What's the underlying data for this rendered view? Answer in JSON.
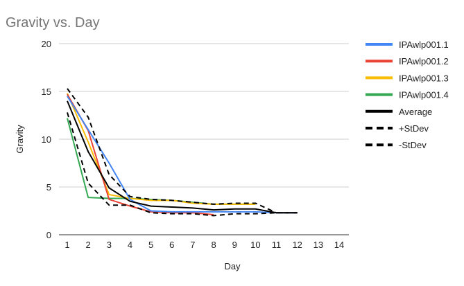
{
  "chart_data": {
    "type": "line",
    "title": "Gravity vs. Day",
    "xlabel": "Day",
    "ylabel": "Gravity",
    "xlim": [
      1,
      14
    ],
    "ylim": [
      0,
      20
    ],
    "x_ticks": [
      "1",
      "2",
      "3",
      "4",
      "5",
      "6",
      "7",
      "8",
      "9",
      "10",
      "11",
      "12",
      "13",
      "14"
    ],
    "y_ticks": [
      "0",
      "5",
      "10",
      "15",
      "20"
    ],
    "grid": true,
    "legend_position": "right",
    "series": [
      {
        "name": "IPAwlp001.1",
        "color": "#4285f4",
        "dash": false,
        "x": [
          1,
          2,
          3,
          4,
          5,
          6,
          7,
          8,
          9,
          10,
          11,
          12
        ],
        "values": [
          14.5,
          11.0,
          7.5,
          3.7,
          2.5,
          2.4,
          2.4,
          2.4,
          2.4,
          2.4,
          2.3,
          2.3
        ]
      },
      {
        "name": "IPAwlp001.2",
        "color": "#ea4335",
        "dash": false,
        "x": [
          1,
          2,
          3,
          4,
          5,
          6,
          7,
          8
        ],
        "values": [
          14.7,
          10.9,
          3.7,
          3.0,
          2.4,
          2.3,
          2.3,
          2.1
        ]
      },
      {
        "name": "IPAwlp001.3",
        "color": "#fbbc04",
        "dash": false,
        "x": [
          1,
          2,
          3,
          4,
          5,
          6,
          7,
          8,
          9,
          10
        ],
        "values": [
          14.8,
          9.7,
          4.2,
          3.8,
          3.6,
          3.6,
          3.3,
          3.2,
          3.2,
          3.2
        ]
      },
      {
        "name": "IPAwlp001.4",
        "color": "#34a853",
        "dash": false,
        "x": [
          1,
          2,
          3,
          4,
          5,
          6,
          7,
          8,
          9,
          10
        ],
        "values": [
          12.2,
          3.9,
          3.8,
          3.8,
          3.7,
          3.6,
          3.4,
          3.2,
          3.2,
          3.2
        ]
      },
      {
        "name": "Average",
        "color": "#000000",
        "dash": false,
        "x": [
          1,
          2,
          3,
          4,
          5,
          6,
          7,
          8,
          9,
          10,
          11,
          12
        ],
        "values": [
          14.0,
          8.7,
          4.9,
          3.5,
          3.0,
          2.9,
          2.8,
          2.6,
          2.7,
          2.7,
          2.3,
          2.3
        ]
      },
      {
        "name": "+StDev",
        "color": "#000000",
        "dash": true,
        "x": [
          1,
          2,
          3,
          4,
          5,
          6,
          7,
          8,
          9,
          10,
          11,
          12
        ],
        "values": [
          15.3,
          12.3,
          6.3,
          4.0,
          3.7,
          3.6,
          3.4,
          3.2,
          3.3,
          3.3,
          2.3,
          2.3
        ]
      },
      {
        "name": "-StDev",
        "color": "#000000",
        "dash": true,
        "x": [
          1,
          2,
          3,
          4,
          5,
          6,
          7,
          8,
          9,
          10,
          11,
          12
        ],
        "values": [
          12.8,
          5.4,
          3.1,
          3.1,
          2.3,
          2.2,
          2.2,
          2.0,
          2.2,
          2.2,
          2.3,
          2.3
        ]
      }
    ]
  }
}
